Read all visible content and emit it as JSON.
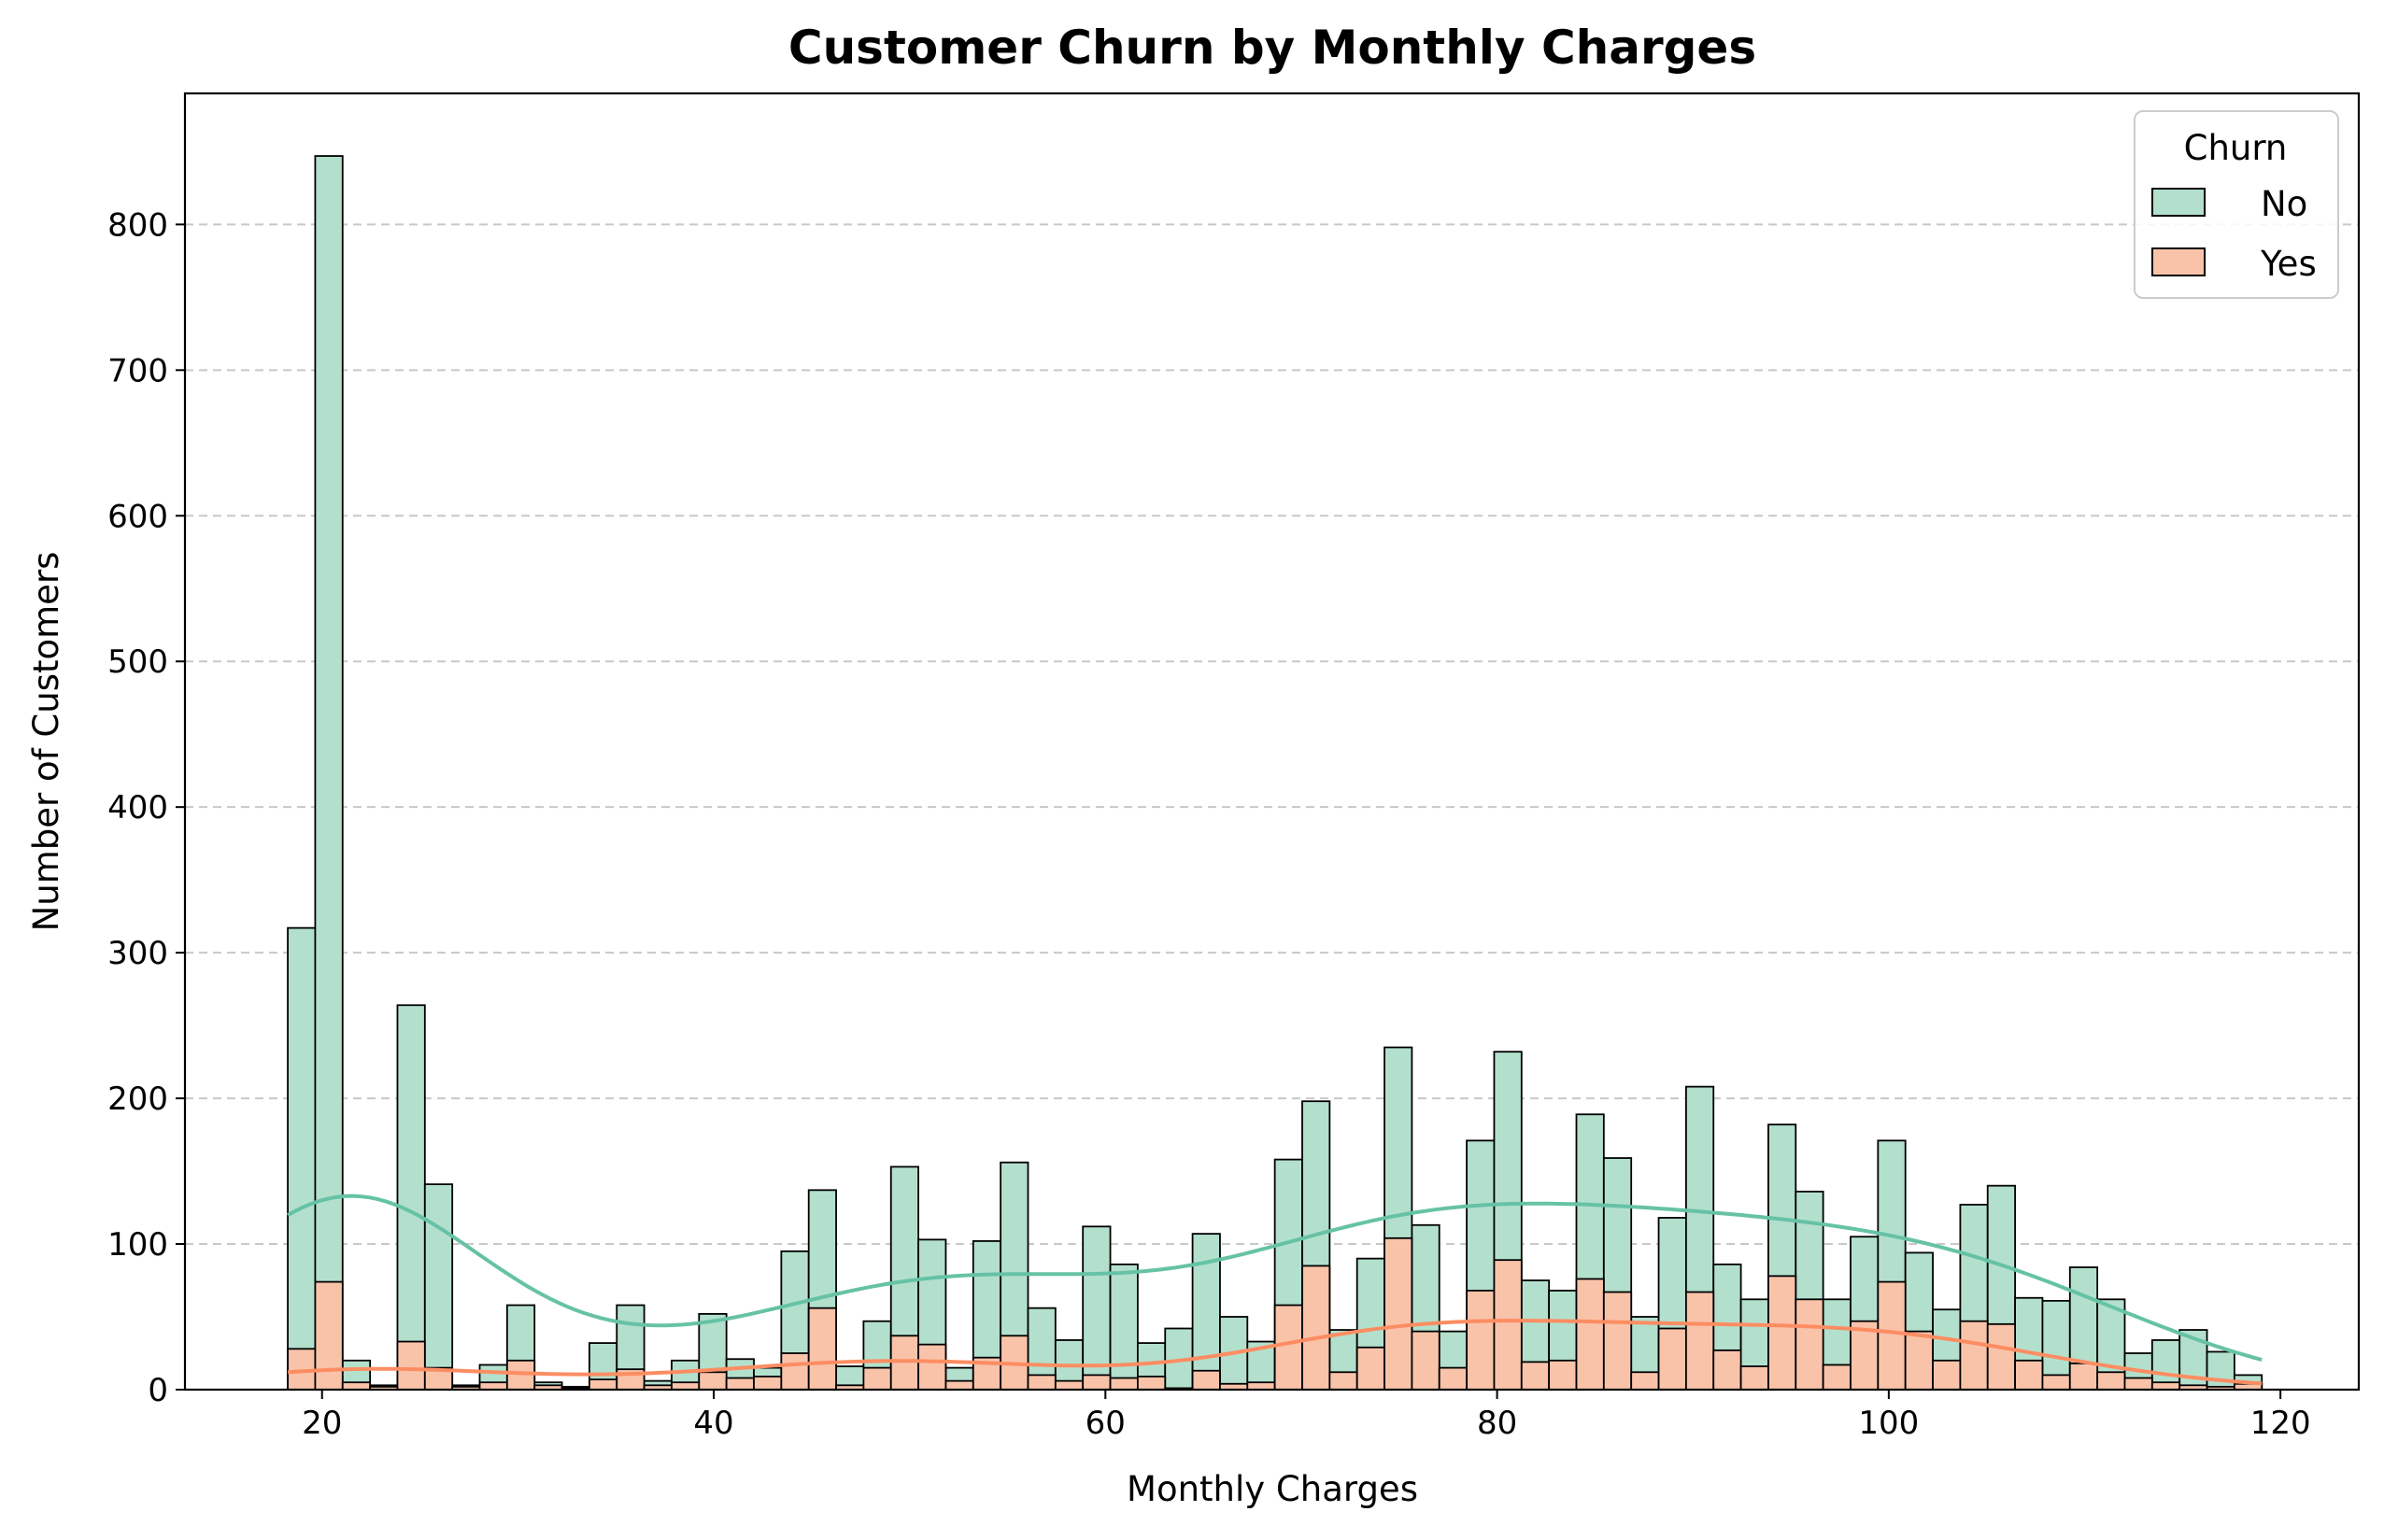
{
  "chart_data": {
    "type": "bar",
    "title": "Customer Churn by Monthly Charges",
    "xlabel": "Monthly Charges",
    "ylabel": "Number of Customers",
    "xlim": [
      13,
      124
    ],
    "ylim": [
      0,
      890
    ],
    "xticks": [
      "20",
      "40",
      "60",
      "80",
      "100",
      "120"
    ],
    "yticks": [
      "0",
      "100",
      "200",
      "300",
      "400",
      "500",
      "600",
      "700",
      "800"
    ],
    "grid": "horizontal dashed",
    "legend": {
      "title": "Churn",
      "position": "top-right",
      "entries": [
        "No",
        "Yes"
      ]
    },
    "colors": {
      "No": "#b3e0cd",
      "Yes": "#f9c3aa",
      "No_line": "#66c2a5",
      "Yes_line": "#fc8d62",
      "edge": "#000000",
      "grid": "#c8c8c8"
    },
    "bin_start": 18.25,
    "bin_width": 1.4,
    "series": [
      {
        "name": "No",
        "values": [
          317,
          847,
          20,
          3,
          264,
          141,
          3,
          17,
          58,
          5,
          2,
          32,
          58,
          6,
          20,
          52,
          21,
          15,
          95,
          137,
          16,
          47,
          153,
          103,
          15,
          102,
          156,
          56,
          34,
          112,
          86,
          32,
          42,
          107,
          50,
          33,
          158,
          198,
          41,
          90,
          235,
          113,
          40,
          171,
          232,
          75,
          68,
          189,
          159,
          50,
          118,
          208,
          86,
          62,
          182,
          136,
          62,
          105,
          171,
          94,
          55,
          127,
          140,
          63,
          61,
          84,
          62,
          25,
          34,
          41,
          26,
          10
        ]
      },
      {
        "name": "Yes",
        "values": [
          28,
          74,
          5,
          2,
          33,
          15,
          2,
          5,
          20,
          3,
          1,
          7,
          14,
          3,
          5,
          12,
          8,
          9,
          25,
          56,
          3,
          15,
          37,
          31,
          6,
          22,
          37,
          10,
          6,
          10,
          8,
          9,
          1,
          13,
          4,
          5,
          58,
          85,
          12,
          29,
          104,
          40,
          15,
          68,
          89,
          19,
          20,
          76,
          67,
          12,
          42,
          67,
          27,
          16,
          78,
          62,
          17,
          47,
          74,
          40,
          20,
          47,
          45,
          20,
          10,
          18,
          12,
          8,
          5,
          3,
          2,
          4
        ]
      }
    ]
  }
}
